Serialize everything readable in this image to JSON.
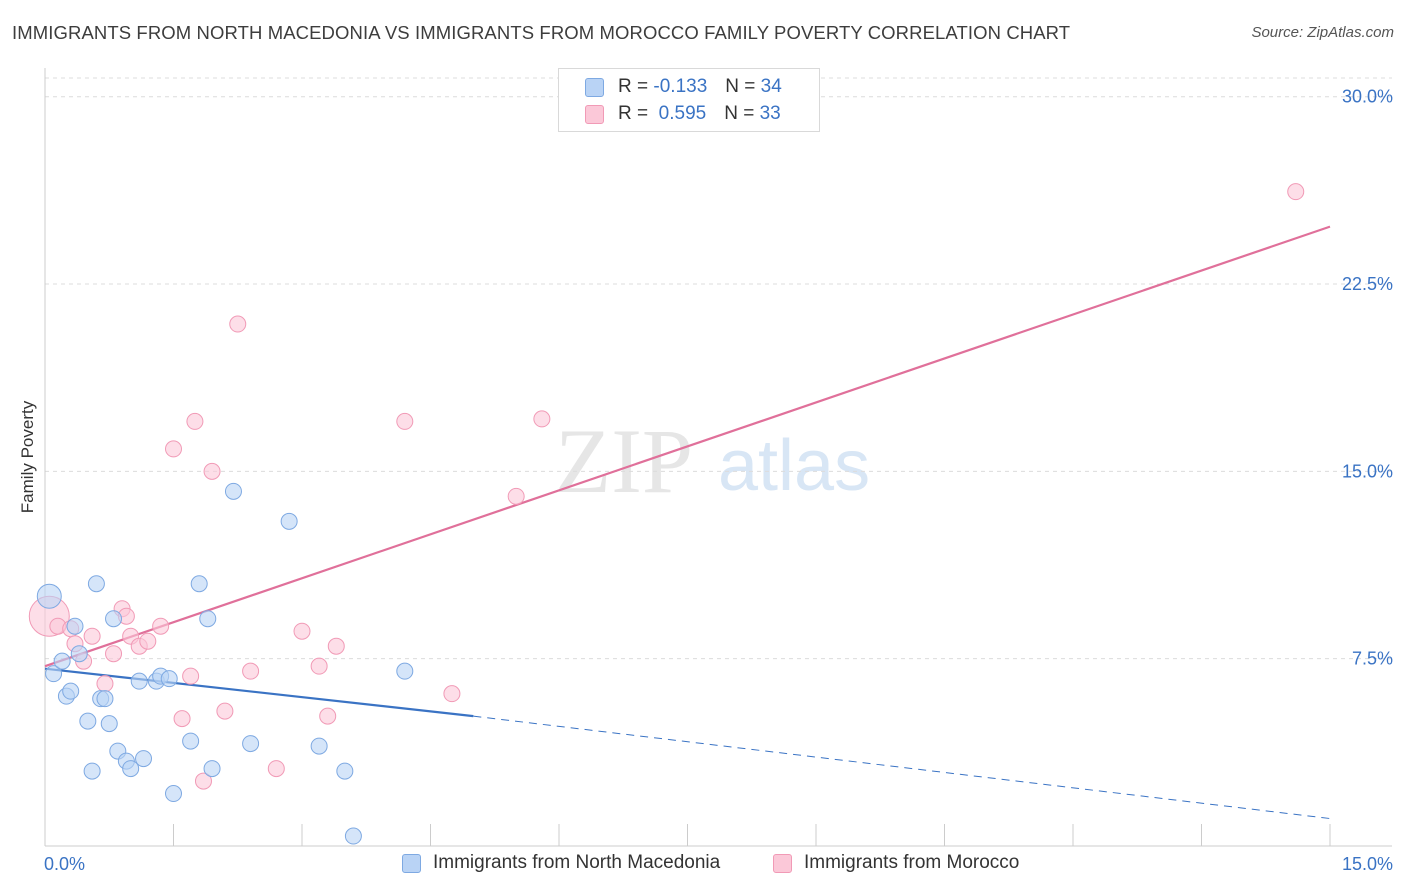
{
  "header": {
    "title": "IMMIGRANTS FROM NORTH MACEDONIA VS IMMIGRANTS FROM MOROCCO FAMILY POVERTY CORRELATION CHART",
    "source": "Source: ZipAtlas.com"
  },
  "watermark": "ZIPatlas",
  "legend": {
    "r_label": "R =",
    "n_label": "N =",
    "rows": [
      {
        "r": "-0.133",
        "n": "34"
      },
      {
        "r": "0.595",
        "n": "33"
      }
    ]
  },
  "colors": {
    "blue_fill": "#b9d3f5",
    "blue_stroke": "#7ea9e2",
    "blue_line": "#3a73c4",
    "pink_fill": "#fbc8d8",
    "pink_stroke": "#f19ab6",
    "pink_line": "#e0709a",
    "tick_label": "#3a73c4",
    "grid": "#dcdcdc"
  },
  "chart_data": {
    "type": "scatter",
    "title": "IMMIGRANTS FROM NORTH MACEDONIA VS IMMIGRANTS FROM MOROCCO FAMILY POVERTY CORRELATION CHART",
    "xlabel": "",
    "ylabel": "Family Poverty",
    "xlim": [
      0,
      15
    ],
    "ylim": [
      0,
      30
    ],
    "x_tick_labels": [
      "0.0%",
      "15.0%"
    ],
    "y_ticks": [
      7.5,
      15.0,
      22.5,
      30.0
    ],
    "y_tick_labels": [
      "7.5%",
      "15.0%",
      "22.5%",
      "30.0%"
    ],
    "grid": true,
    "legend_position": "top-center",
    "series": [
      {
        "name": "Immigrants from North Macedonia",
        "color": "blue",
        "points": [
          [
            0.05,
            10.0
          ],
          [
            0.1,
            6.9
          ],
          [
            0.2,
            7.4
          ],
          [
            0.25,
            6.0
          ],
          [
            0.3,
            6.2
          ],
          [
            0.35,
            8.8
          ],
          [
            0.4,
            7.7
          ],
          [
            0.5,
            5.0
          ],
          [
            0.55,
            3.0
          ],
          [
            0.6,
            10.5
          ],
          [
            0.65,
            5.9
          ],
          [
            0.7,
            5.9
          ],
          [
            0.75,
            4.9
          ],
          [
            0.8,
            9.1
          ],
          [
            0.85,
            3.8
          ],
          [
            0.95,
            3.4
          ],
          [
            1.0,
            3.1
          ],
          [
            1.1,
            6.6
          ],
          [
            1.15,
            3.5
          ],
          [
            1.3,
            6.6
          ],
          [
            1.35,
            6.8
          ],
          [
            1.45,
            6.7
          ],
          [
            1.5,
            2.1
          ],
          [
            1.7,
            4.2
          ],
          [
            1.8,
            10.5
          ],
          [
            1.9,
            9.1
          ],
          [
            1.95,
            3.1
          ],
          [
            2.2,
            14.2
          ],
          [
            2.4,
            4.1
          ],
          [
            2.85,
            13.0
          ],
          [
            3.2,
            4.0
          ],
          [
            3.5,
            3.0
          ],
          [
            3.6,
            0.4
          ],
          [
            4.2,
            7.0
          ]
        ],
        "trend": {
          "x_solid": [
            0,
            5.0
          ],
          "y_solid": [
            7.1,
            5.2
          ],
          "x_dash": [
            5.0,
            15.0
          ],
          "y_dash": [
            5.2,
            1.1
          ]
        }
      },
      {
        "name": "Immigrants from Morocco",
        "color": "pink",
        "points": [
          [
            0.05,
            9.2
          ],
          [
            0.15,
            8.8
          ],
          [
            0.3,
            8.7
          ],
          [
            0.35,
            8.1
          ],
          [
            0.45,
            7.4
          ],
          [
            0.55,
            8.4
          ],
          [
            0.7,
            6.5
          ],
          [
            0.8,
            7.7
          ],
          [
            0.9,
            9.5
          ],
          [
            0.95,
            9.2
          ],
          [
            1.0,
            8.4
          ],
          [
            1.1,
            8.0
          ],
          [
            1.2,
            8.2
          ],
          [
            1.35,
            8.8
          ],
          [
            1.5,
            15.9
          ],
          [
            1.6,
            5.1
          ],
          [
            1.7,
            6.8
          ],
          [
            1.75,
            17.0
          ],
          [
            1.85,
            2.6
          ],
          [
            1.95,
            15.0
          ],
          [
            2.1,
            5.4
          ],
          [
            2.25,
            20.9
          ],
          [
            2.4,
            7.0
          ],
          [
            2.7,
            3.1
          ],
          [
            3.0,
            8.6
          ],
          [
            3.2,
            7.2
          ],
          [
            3.3,
            5.2
          ],
          [
            3.4,
            8.0
          ],
          [
            4.2,
            17.0
          ],
          [
            4.75,
            6.1
          ],
          [
            5.5,
            14.0
          ],
          [
            5.8,
            17.1
          ],
          [
            14.6,
            26.2
          ]
        ],
        "trend": {
          "x": [
            0,
            15.0
          ],
          "y": [
            7.2,
            24.8
          ]
        }
      }
    ]
  },
  "bottom_legend": {
    "items": [
      "Immigrants from North Macedonia",
      "Immigrants from Morocco"
    ]
  }
}
